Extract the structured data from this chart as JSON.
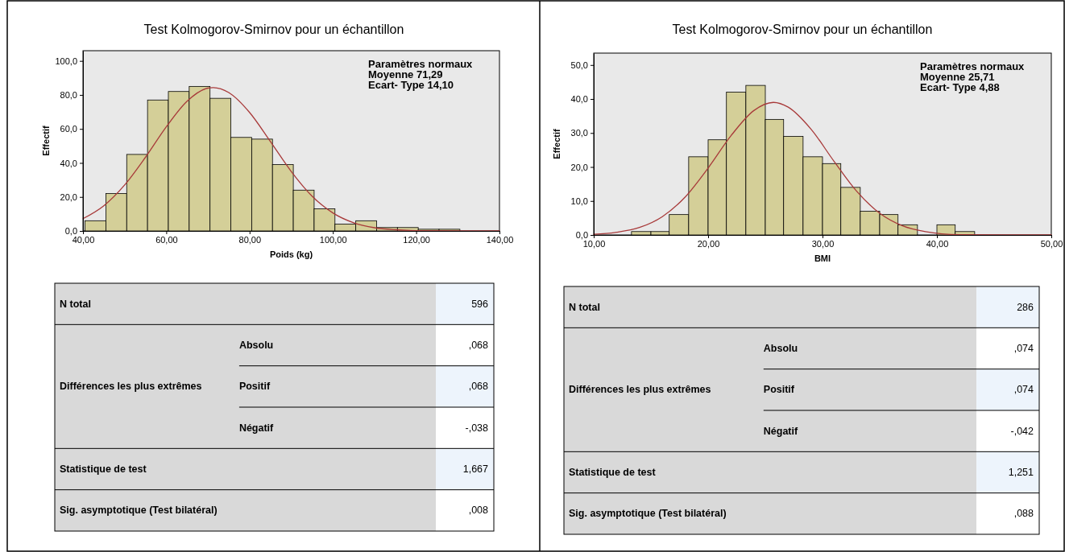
{
  "chart_data": [
    {
      "type": "histogram",
      "title": "Test Kolmogorov-Smirnov pour un échantillon",
      "xlabel": "Poids (kg)",
      "ylabel": "Effectif",
      "color": "#d4cf98",
      "bins": [
        40.5,
        45.5,
        50.5,
        55.5,
        60.5,
        65.5,
        70.5,
        75.5,
        80.5,
        85.5,
        90.5,
        95.5,
        100.5,
        105.5,
        110.5,
        115.5,
        120.5,
        125.5,
        130.5
      ],
      "values": [
        6,
        22,
        45,
        77,
        82,
        85,
        78,
        55,
        54,
        39,
        24,
        13,
        4,
        6,
        2,
        2,
        1,
        1
      ],
      "xlim": [
        40,
        140
      ],
      "xticks": [
        {
          "value": 40,
          "label": "40,00"
        },
        {
          "value": 60,
          "label": "60,00"
        },
        {
          "value": 80,
          "label": "80,00"
        },
        {
          "value": 100,
          "label": "100,00"
        },
        {
          "value": 120,
          "label": "120,00"
        },
        {
          "value": 140,
          "label": "140,00"
        }
      ],
      "ylim": [
        0,
        106
      ],
      "yticks": [
        {
          "value": 0,
          "label": "0,0"
        },
        {
          "value": 20,
          "label": "20,0"
        },
        {
          "value": 40,
          "label": "40,0"
        },
        {
          "value": 60,
          "label": "60,0"
        },
        {
          "value": 80,
          "label": "80,0"
        },
        {
          "value": 100,
          "label": "100,0"
        }
      ],
      "series": [
        {
          "type": "line",
          "color": "#a83a3a",
          "x": [
            40,
            45,
            50,
            55,
            60,
            65,
            70,
            71.29,
            75,
            80,
            85,
            90,
            95,
            100,
            105,
            110,
            115,
            120,
            130,
            140
          ],
          "values": [
            7.2,
            14.8,
            27,
            43.3,
            61.2,
            76.3,
            84,
            84.3,
            81.4,
            69.7,
            52.6,
            35,
            20.5,
            10.6,
            4.8,
            1.9,
            0.7,
            0.2,
            0,
            0
          ]
        }
      ],
      "annotations": [
        "Paramètres normaux",
        "Moyenne 71,29",
        "Ecart- Type 14,10"
      ]
    },
    {
      "type": "other",
      "annotations": [
        "N total",
        "596",
        "Différences les plus extrêmes",
        "Absolu",
        ",068",
        "Positif",
        ",068",
        "Négatif",
        "-,038",
        "Statistique de test",
        "1,667",
        "Sig. asymptotique (Test bilatéral)",
        ",008"
      ]
    },
    {
      "type": "histogram",
      "title": "Test Kolmogorov-Smirnov pour un échantillon",
      "xlabel": "BMI",
      "ylabel": "Effectif",
      "color": "#d4cf98",
      "bins": [
        13.3,
        15,
        16.6,
        18.3,
        20,
        21.6,
        23.3,
        25,
        26.6,
        28.3,
        30,
        31.6,
        33.3,
        35,
        36.6,
        38.3,
        40,
        41.6,
        43.3
      ],
      "values": [
        1,
        1,
        6,
        23,
        28,
        42,
        44,
        34,
        29,
        23,
        21,
        14,
        7,
        6,
        3,
        0,
        3,
        1
      ],
      "xlim": [
        10,
        50
      ],
      "xticks": [
        {
          "value": 10,
          "label": "10,00"
        },
        {
          "value": 20,
          "label": "20,00"
        },
        {
          "value": 30,
          "label": "30,00"
        },
        {
          "value": 40,
          "label": "40,00"
        },
        {
          "value": 50,
          "label": "50,00"
        }
      ],
      "ylim": [
        0,
        53.5
      ],
      "yticks": [
        {
          "value": 0,
          "label": "0,0"
        },
        {
          "value": 10,
          "label": "10,0"
        },
        {
          "value": 20,
          "label": "20,0"
        },
        {
          "value": 30,
          "label": "30,0"
        },
        {
          "value": 40,
          "label": "40,0"
        },
        {
          "value": 50,
          "label": "50,0"
        }
      ],
      "series": [
        {
          "type": "line",
          "color": "#a83a3a",
          "x": [
            10,
            12,
            14,
            16,
            18,
            20,
            22,
            24,
            25.71,
            27,
            29,
            31,
            33,
            35,
            37,
            39,
            42,
            46,
            50
          ],
          "values": [
            0.2,
            0.8,
            2.2,
            5.4,
            11.2,
            19.7,
            29.2,
            36.6,
            39,
            37.6,
            31.1,
            21.7,
            12.8,
            6.4,
            2.7,
            1,
            0.1,
            0,
            0
          ]
        }
      ],
      "annotations": [
        "Paramètres normaux",
        "Moyenne 25,71",
        "Ecart- Type 4,88"
      ]
    },
    {
      "type": "other",
      "annotations": [
        "N total",
        "286",
        "Différences les plus extrêmes",
        "Absolu",
        ",074",
        "Positif",
        ",074",
        "Négatif",
        "-,042",
        "Statistique de test",
        "1,251",
        "Sig. asymptotique (Test bilatéral)",
        ",088"
      ]
    }
  ]
}
